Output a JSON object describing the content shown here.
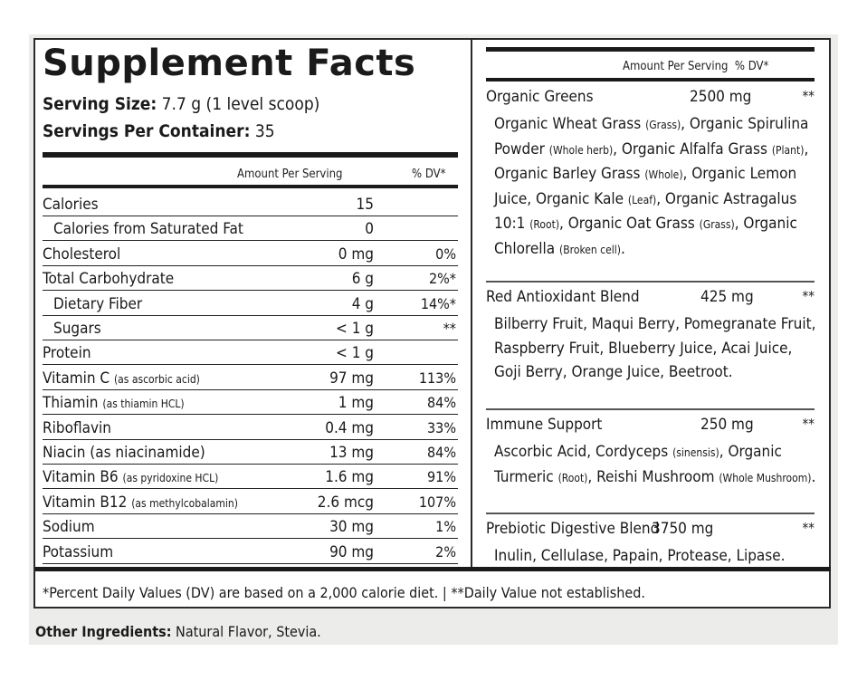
{
  "title": "Supplement Facts",
  "serving_size_label": "Serving Size:",
  "serving_size_value": " 7.7 g (1 level scoop)",
  "servings_label": "Servings Per Container:",
  "servings_value": " 35",
  "header": {
    "amount": "Amount Per Serving",
    "dv": "% DV*"
  },
  "rows": [
    {
      "label": "Calories",
      "sub": "",
      "indent": false,
      "amount": "15",
      "dv": ""
    },
    {
      "label": "Calories from Saturated Fat",
      "sub": "",
      "indent": true,
      "amount": "0",
      "dv": ""
    },
    {
      "label": "Cholesterol",
      "sub": "",
      "indent": false,
      "amount": "0 mg",
      "dv": "0%"
    },
    {
      "label": "Total Carbohydrate",
      "sub": "",
      "indent": false,
      "amount": "6 g",
      "dv": "2%*"
    },
    {
      "label": "Dietary Fiber",
      "sub": "",
      "indent": true,
      "amount": "4 g",
      "dv": "14%*"
    },
    {
      "label": "Sugars",
      "sub": "",
      "indent": true,
      "amount": "< 1 g",
      "dv": "**"
    },
    {
      "label": "Protein",
      "sub": "",
      "indent": false,
      "amount": "< 1 g",
      "dv": ""
    },
    {
      "label": "Vitamin C",
      "sub": "(as ascorbic acid)",
      "indent": false,
      "amount": "97 mg",
      "dv": "113%"
    },
    {
      "label": "Thiamin",
      "sub": "(as thiamin HCL)",
      "indent": false,
      "amount": "1 mg",
      "dv": "84%"
    },
    {
      "label": "Riboflavin",
      "sub": "",
      "indent": false,
      "amount": "0.4 mg",
      "dv": "33%"
    },
    {
      "label": "Niacin (as niacinamide)",
      "sub": "",
      "indent": false,
      "amount": "13 mg",
      "dv": "84%"
    },
    {
      "label": "Vitamin B6",
      "sub": "(as pyridoxine HCL)",
      "indent": false,
      "amount": "1.6 mg",
      "dv": "91%"
    },
    {
      "label": "Vitamin B12",
      "sub": "(as methylcobalamin)",
      "indent": false,
      "amount": "2.6 mcg",
      "dv": "107%"
    },
    {
      "label": "Sodium",
      "sub": "",
      "indent": false,
      "amount": "30 mg",
      "dv": "1%"
    },
    {
      "label": "Potassium",
      "sub": "",
      "indent": false,
      "amount": "90 mg",
      "dv": "2%"
    }
  ],
  "blends": [
    {
      "name": "Organic Greens",
      "amount": "2500 mg",
      "dv": "**",
      "ingredients": [
        {
          "t": "Organic Wheat Grass "
        },
        {
          "s": "(Grass)"
        },
        {
          "t": ", Organic Spirulina Powder "
        },
        {
          "s": "(Whole herb)"
        },
        {
          "t": ", Organic Alfalfa Grass "
        },
        {
          "s": "(Plant)"
        },
        {
          "t": ", Organic Barley Grass "
        },
        {
          "s": "(Whole)"
        },
        {
          "t": ", Organic Lemon Juice, Organic Kale "
        },
        {
          "s": "(Leaf)"
        },
        {
          "t": ", Organic Astragalus 10:1 "
        },
        {
          "s": "(Root)"
        },
        {
          "t": ", Organic Oat Grass "
        },
        {
          "s": "(Grass)"
        },
        {
          "t": ", Organic Chlorella "
        },
        {
          "s": "(Broken cell)"
        },
        {
          "t": "."
        }
      ]
    },
    {
      "name": "Red Antioxidant Blend",
      "amount": "425 mg",
      "dv": "**",
      "ingredients": [
        {
          "t": "Bilberry Fruit, Maqui Berry, Pomegranate Fruit, Raspberry Fruit, Blueberry Juice, Acai Juice, Goji Berry, Orange Juice, Beetroot."
        }
      ]
    },
    {
      "name": "Immune Support",
      "amount": "250 mg",
      "dv": "**",
      "ingredients": [
        {
          "t": "Ascorbic Acid, Cordyceps "
        },
        {
          "s": "(sinensis)"
        },
        {
          "t": ", Organic Turmeric "
        },
        {
          "s": "(Root)"
        },
        {
          "t": ", Reishi Mushroom "
        },
        {
          "s": "(Whole Mushroom)"
        },
        {
          "t": "."
        }
      ]
    },
    {
      "name": "Prebiotic Digestive Blend",
      "amount": "3750 mg",
      "dv": "**",
      "ingredients": [
        {
          "t": "Inulin, Cellulase, Papain, Protease, Lipase."
        }
      ]
    }
  ],
  "footnote": "*Percent Daily Values (DV) are based on a 2,000 calorie diet.  |  **Daily Value not established.",
  "other_label": "Other Ingredients:",
  "other_value": " Natural Flavor, Stevia."
}
